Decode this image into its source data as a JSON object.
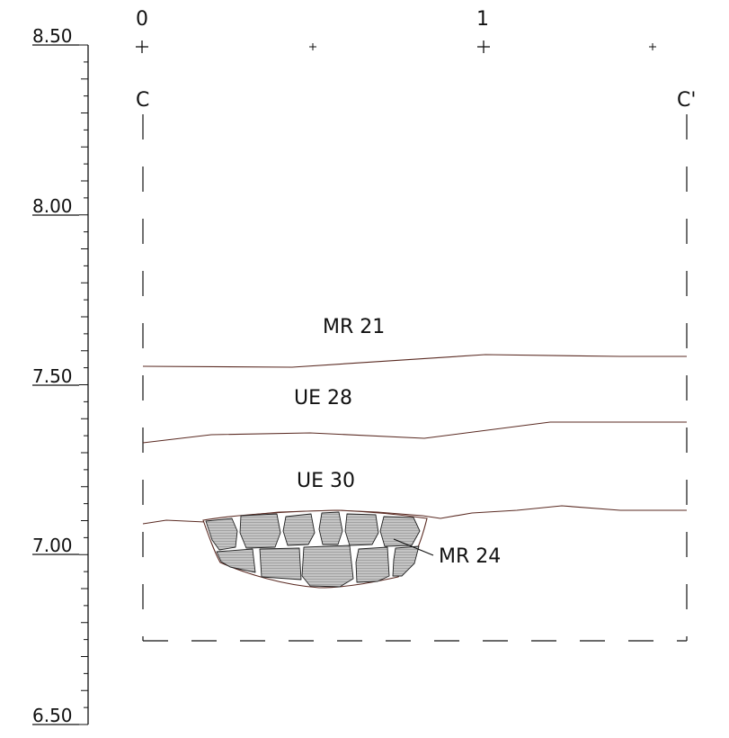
{
  "scale_bar": {
    "labels": [
      "0",
      "1"
    ]
  },
  "section_endpoints": {
    "left": "C",
    "right": "C'"
  },
  "elevation_labels": [
    "8.50",
    "8.00",
    "7.50",
    "7.00",
    "6.50"
  ],
  "units": [
    {
      "id": "mr21",
      "label": "MR 21"
    },
    {
      "id": "ue28",
      "label": "UE 28"
    },
    {
      "id": "ue30",
      "label": "UE 30"
    },
    {
      "id": "mr24",
      "label": "MR 24"
    }
  ],
  "colors": {
    "boundary": "#5a2a22",
    "stone_fill": "#c4c4c4",
    "stone_hatch": "#9a9a9a",
    "ink": "#111111"
  }
}
